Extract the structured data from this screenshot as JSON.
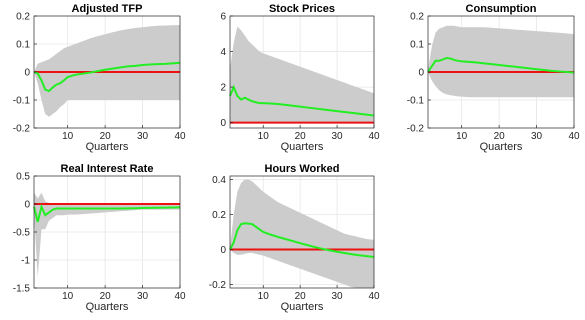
{
  "chart_data": [
    {
      "type": "line",
      "title": "Adjusted TFP",
      "xlabel": "Quarters",
      "xlim": [
        1,
        40
      ],
      "ylim": [
        -0.2,
        0.2
      ],
      "xticks": [
        10,
        20,
        30,
        40
      ],
      "xtick_labels": [
        "10",
        "20",
        "30",
        "40"
      ],
      "yticks": [
        -0.2,
        -0.1,
        0,
        0.1,
        0.2
      ],
      "ytick_labels": [
        "-0.2",
        "-0.1",
        "0",
        "0.1",
        "0.2"
      ],
      "grid": true,
      "colors": {
        "response": "#22ee22",
        "zero": "#ee1111",
        "band": "#cccccc"
      },
      "series": [
        {
          "x": [
            1,
            2,
            3,
            4,
            5,
            6,
            7,
            8,
            9,
            10,
            12,
            14,
            16,
            18,
            20,
            22,
            24,
            26,
            28,
            30,
            32,
            34,
            36,
            38,
            40
          ],
          "values": [
            0,
            -0.005,
            -0.03,
            -0.063,
            -0.068,
            -0.055,
            -0.045,
            -0.04,
            -0.03,
            -0.018,
            -0.01,
            -0.006,
            -0.002,
            0.003,
            0.008,
            0.012,
            0.016,
            0.02,
            0.022,
            0.025,
            0.027,
            0.028,
            0.029,
            0.031,
            0.033
          ],
          "lower": [
            0,
            -0.04,
            -0.1,
            -0.15,
            -0.16,
            -0.15,
            -0.14,
            -0.125,
            -0.115,
            -0.1,
            -0.1,
            -0.1,
            -0.1,
            -0.1,
            -0.1,
            -0.1,
            -0.1,
            -0.1,
            -0.1,
            -0.1,
            -0.1,
            -0.1,
            -0.1,
            -0.1,
            -0.1
          ],
          "upper": [
            0,
            0.03,
            0.035,
            0.04,
            0.045,
            0.055,
            0.065,
            0.075,
            0.085,
            0.09,
            0.1,
            0.11,
            0.12,
            0.128,
            0.135,
            0.142,
            0.148,
            0.153,
            0.157,
            0.16,
            0.163,
            0.165,
            0.166,
            0.167,
            0.168
          ]
        }
      ]
    },
    {
      "type": "line",
      "title": "Stock Prices",
      "xlabel": "Quarters",
      "xlim": [
        1,
        40
      ],
      "ylim": [
        -0.3,
        6
      ],
      "xticks": [
        10,
        20,
        30,
        40
      ],
      "xtick_labels": [
        "10",
        "20",
        "30",
        "40"
      ],
      "yticks": [
        0,
        2,
        4,
        6
      ],
      "ytick_labels": [
        "0",
        "2",
        "4",
        "6"
      ],
      "grid": true,
      "colors": {
        "response": "#22ee22",
        "zero": "#ee1111",
        "band": "#cccccc"
      },
      "series": [
        {
          "x": [
            1,
            2,
            3,
            4,
            5,
            6,
            7,
            8,
            9,
            10,
            12,
            14,
            16,
            18,
            20,
            22,
            24,
            26,
            28,
            30,
            32,
            34,
            36,
            38,
            40
          ],
          "values": [
            1.5,
            2.0,
            1.5,
            1.3,
            1.4,
            1.3,
            1.2,
            1.15,
            1.1,
            1.1,
            1.08,
            1.05,
            1.0,
            0.95,
            0.9,
            0.85,
            0.8,
            0.75,
            0.7,
            0.65,
            0.6,
            0.55,
            0.5,
            0.45,
            0.4
          ],
          "lower": [
            0.05,
            0.05,
            0.0,
            0.0,
            0.0,
            0.0,
            0.0,
            0.0,
            0.0,
            0.0,
            0.0,
            0.0,
            0.0,
            0.0,
            0.0,
            0.0,
            0.0,
            0.0,
            0.0,
            0.0,
            0.0,
            0.0,
            0.0,
            0.0,
            0.0
          ],
          "upper": [
            3.0,
            4.5,
            5.4,
            5.2,
            4.9,
            4.6,
            4.4,
            4.2,
            4.0,
            3.9,
            3.75,
            3.6,
            3.45,
            3.3,
            3.15,
            3.0,
            2.85,
            2.7,
            2.55,
            2.4,
            2.25,
            2.1,
            1.95,
            1.8,
            1.65
          ]
        }
      ]
    },
    {
      "type": "line",
      "title": "Consumption",
      "xlabel": "Quarters",
      "xlim": [
        1,
        40
      ],
      "ylim": [
        -0.2,
        0.2
      ],
      "xticks": [
        10,
        20,
        30,
        40
      ],
      "xtick_labels": [
        "10",
        "20",
        "30",
        "40"
      ],
      "yticks": [
        -0.2,
        -0.1,
        0,
        0.1,
        0.2
      ],
      "ytick_labels": [
        "-0.2",
        "-0.1",
        "0",
        "0.1",
        "0.2"
      ],
      "grid": true,
      "colors": {
        "response": "#22ee22",
        "zero": "#ee1111",
        "band": "#cccccc"
      },
      "series": [
        {
          "x": [
            1,
            2,
            3,
            4,
            5,
            6,
            7,
            8,
            9,
            10,
            12,
            14,
            16,
            18,
            20,
            22,
            24,
            26,
            28,
            30,
            32,
            34,
            36,
            38,
            40
          ],
          "values": [
            0,
            0.02,
            0.04,
            0.04,
            0.045,
            0.05,
            0.048,
            0.043,
            0.04,
            0.038,
            0.036,
            0.034,
            0.031,
            0.028,
            0.025,
            0.022,
            0.019,
            0.016,
            0.013,
            0.01,
            0.007,
            0.004,
            0.002,
            0.0,
            -0.002
          ],
          "lower": [
            0,
            -0.03,
            -0.05,
            -0.065,
            -0.075,
            -0.08,
            -0.083,
            -0.085,
            -0.087,
            -0.088,
            -0.09,
            -0.09,
            -0.09,
            -0.09,
            -0.09,
            -0.09,
            -0.09,
            -0.09,
            -0.09,
            -0.09,
            -0.09,
            -0.09,
            -0.09,
            -0.09,
            -0.09
          ],
          "upper": [
            0.005,
            0.09,
            0.14,
            0.155,
            0.16,
            0.165,
            0.165,
            0.165,
            0.162,
            0.16,
            0.16,
            0.16,
            0.16,
            0.158,
            0.156,
            0.154,
            0.152,
            0.15,
            0.148,
            0.146,
            0.144,
            0.142,
            0.14,
            0.138,
            0.135
          ]
        }
      ]
    },
    {
      "type": "line",
      "title": "Real Interest Rate",
      "xlabel": "Quarters",
      "xlim": [
        1,
        40
      ],
      "ylim": [
        -1.5,
        0.5
      ],
      "xticks": [
        10,
        20,
        30,
        40
      ],
      "xtick_labels": [
        "10",
        "20",
        "30",
        "40"
      ],
      "yticks": [
        -1.5,
        -1,
        -0.5,
        0,
        0.5
      ],
      "ytick_labels": [
        "-1.5",
        "-1",
        "-0.5",
        "0",
        "0.5"
      ],
      "grid": true,
      "colors": {
        "response": "#22ee22",
        "zero": "#ee1111",
        "band": "#cccccc"
      },
      "series": [
        {
          "x": [
            1,
            2,
            3,
            4,
            5,
            6,
            7,
            8,
            9,
            10,
            12,
            14,
            16,
            18,
            20,
            22,
            24,
            26,
            28,
            30,
            32,
            34,
            36,
            38,
            40
          ],
          "values": [
            -0.05,
            -0.32,
            -0.05,
            -0.2,
            -0.15,
            -0.1,
            -0.08,
            -0.08,
            -0.08,
            -0.08,
            -0.08,
            -0.08,
            -0.08,
            -0.08,
            -0.08,
            -0.08,
            -0.08,
            -0.078,
            -0.075,
            -0.072,
            -0.07,
            -0.068,
            -0.065,
            -0.063,
            -0.06
          ],
          "lower": [
            -0.2,
            -1.3,
            -0.45,
            -0.45,
            -0.3,
            -0.25,
            -0.2,
            -0.2,
            -0.2,
            -0.19,
            -0.19,
            -0.18,
            -0.17,
            -0.16,
            -0.15,
            -0.14,
            -0.13,
            -0.12,
            -0.11,
            -0.1,
            -0.1,
            -0.1,
            -0.1,
            -0.1,
            -0.1
          ],
          "upper": [
            0.2,
            0.1,
            0.2,
            0.05,
            0.02,
            0.0,
            0.0,
            0.0,
            0.0,
            0.0,
            0.0,
            0.0,
            0.0,
            0.0,
            0.0,
            0.0,
            0.0,
            0.0,
            0.0,
            0.0,
            0.0,
            0.0,
            0.0,
            0.0,
            0.0
          ]
        }
      ]
    },
    {
      "type": "line",
      "title": "Hours Worked",
      "xlabel": "Quarters",
      "xlim": [
        1,
        40
      ],
      "ylim": [
        -0.22,
        0.42
      ],
      "xticks": [
        10,
        20,
        30,
        40
      ],
      "xtick_labels": [
        "10",
        "20",
        "30",
        "40"
      ],
      "yticks": [
        -0.2,
        0,
        0.2,
        0.4
      ],
      "ytick_labels": [
        "-0.2",
        "0",
        "0.2",
        "0.4"
      ],
      "grid": true,
      "colors": {
        "response": "#22ee22",
        "zero": "#ee1111",
        "band": "#cccccc"
      },
      "series": [
        {
          "x": [
            1,
            2,
            3,
            4,
            5,
            6,
            7,
            8,
            9,
            10,
            12,
            14,
            16,
            18,
            20,
            22,
            24,
            26,
            28,
            30,
            32,
            34,
            36,
            38,
            40
          ],
          "values": [
            0,
            0.04,
            0.11,
            0.145,
            0.15,
            0.148,
            0.145,
            0.13,
            0.115,
            0.1,
            0.085,
            0.072,
            0.06,
            0.048,
            0.036,
            0.025,
            0.014,
            0.004,
            -0.005,
            -0.013,
            -0.02,
            -0.027,
            -0.033,
            -0.038,
            -0.043
          ],
          "lower": [
            0,
            -0.02,
            -0.03,
            -0.03,
            -0.025,
            -0.02,
            -0.02,
            -0.025,
            -0.03,
            -0.035,
            -0.05,
            -0.065,
            -0.08,
            -0.095,
            -0.11,
            -0.125,
            -0.14,
            -0.155,
            -0.17,
            -0.185,
            -0.2,
            -0.215,
            -0.22,
            -0.22,
            -0.22
          ],
          "upper": [
            0.01,
            0.2,
            0.33,
            0.38,
            0.4,
            0.4,
            0.39,
            0.37,
            0.35,
            0.33,
            0.3,
            0.27,
            0.25,
            0.23,
            0.21,
            0.19,
            0.17,
            0.15,
            0.13,
            0.11,
            0.09,
            0.08,
            0.07,
            0.06,
            0.055
          ]
        }
      ]
    }
  ]
}
